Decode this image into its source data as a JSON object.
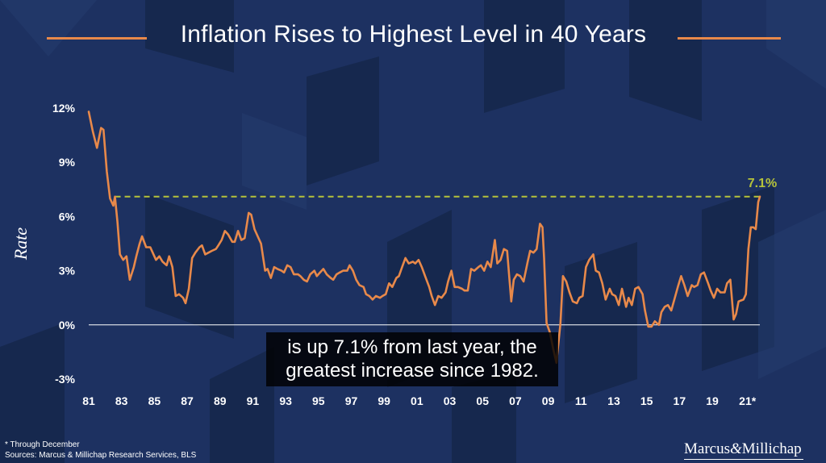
{
  "title": "Inflation Rises to Highest Level in 40 Years",
  "caption_line1": "is up 7.1% from last year, the",
  "caption_line2": "greatest increase since 1982.",
  "footnote_line1": "* Through December",
  "footnote_line2": "Sources: Marcus & Millichap Research Services, BLS",
  "brand_part1": "Marcus",
  "brand_amp": "&",
  "brand_part2": "Millichap",
  "colors": {
    "background": "#1d3161",
    "line": "#e8894a",
    "reference_line": "#b5c23a",
    "text": "#ffffff"
  },
  "chart_data": {
    "type": "line",
    "title": "Inflation Rises to Highest Level in 40 Years",
    "ylabel": "Rate",
    "xlabel": "",
    "ylim": [
      -3,
      12
    ],
    "xlim": [
      1981,
      2021.9
    ],
    "y_ticks": [
      {
        "value": 12,
        "label": "12%"
      },
      {
        "value": 9,
        "label": "9%"
      },
      {
        "value": 6,
        "label": "6%"
      },
      {
        "value": 3,
        "label": "3%"
      },
      {
        "value": 0,
        "label": "0%"
      },
      {
        "value": -3,
        "label": "-3%"
      }
    ],
    "x_ticks": [
      {
        "value": 1981,
        "label": "81"
      },
      {
        "value": 1983,
        "label": "83"
      },
      {
        "value": 1985,
        "label": "85"
      },
      {
        "value": 1987,
        "label": "87"
      },
      {
        "value": 1989,
        "label": "89"
      },
      {
        "value": 1991,
        "label": "91"
      },
      {
        "value": 1993,
        "label": "93"
      },
      {
        "value": 1995,
        "label": "95"
      },
      {
        "value": 1997,
        "label": "97"
      },
      {
        "value": 1999,
        "label": "99"
      },
      {
        "value": 2001,
        "label": "01"
      },
      {
        "value": 2003,
        "label": "03"
      },
      {
        "value": 2005,
        "label": "05"
      },
      {
        "value": 2007,
        "label": "07"
      },
      {
        "value": 2009,
        "label": "09"
      },
      {
        "value": 2011,
        "label": "11"
      },
      {
        "value": 2013,
        "label": "13"
      },
      {
        "value": 2015,
        "label": "15"
      },
      {
        "value": 2017,
        "label": "17"
      },
      {
        "value": 2019,
        "label": "19"
      },
      {
        "value": 2021,
        "label": "21*"
      }
    ],
    "reference_line": {
      "value": 7.1,
      "label": "7.1%",
      "style": "dashed"
    },
    "zero_line": true,
    "grid": false,
    "series": [
      {
        "points": [
          [
            1981.0,
            11.8
          ],
          [
            1981.25,
            10.7
          ],
          [
            1981.5,
            9.8
          ],
          [
            1981.75,
            10.9
          ],
          [
            1981.9,
            10.8
          ],
          [
            1982.1,
            8.5
          ],
          [
            1982.3,
            7.0
          ],
          [
            1982.5,
            6.6
          ],
          [
            1982.6,
            7.1
          ],
          [
            1982.75,
            5.7
          ],
          [
            1982.9,
            3.9
          ],
          [
            1983.1,
            3.6
          ],
          [
            1983.3,
            3.8
          ],
          [
            1983.5,
            2.5
          ],
          [
            1983.75,
            3.2
          ],
          [
            1983.9,
            3.8
          ],
          [
            1984.1,
            4.5
          ],
          [
            1984.25,
            4.9
          ],
          [
            1984.5,
            4.3
          ],
          [
            1984.75,
            4.3
          ],
          [
            1984.9,
            4.0
          ],
          [
            1985.1,
            3.6
          ],
          [
            1985.3,
            3.8
          ],
          [
            1985.5,
            3.5
          ],
          [
            1985.75,
            3.3
          ],
          [
            1985.9,
            3.8
          ],
          [
            1986.1,
            3.2
          ],
          [
            1986.3,
            1.6
          ],
          [
            1986.5,
            1.7
          ],
          [
            1986.75,
            1.5
          ],
          [
            1986.9,
            1.2
          ],
          [
            1987.1,
            2.0
          ],
          [
            1987.3,
            3.7
          ],
          [
            1987.5,
            4.0
          ],
          [
            1987.75,
            4.3
          ],
          [
            1987.9,
            4.4
          ],
          [
            1988.1,
            3.9
          ],
          [
            1988.3,
            4.0
          ],
          [
            1988.5,
            4.1
          ],
          [
            1988.75,
            4.2
          ],
          [
            1988.9,
            4.4
          ],
          [
            1989.1,
            4.7
          ],
          [
            1989.3,
            5.2
          ],
          [
            1989.5,
            5.0
          ],
          [
            1989.75,
            4.6
          ],
          [
            1989.9,
            4.6
          ],
          [
            1990.1,
            5.2
          ],
          [
            1990.3,
            4.7
          ],
          [
            1990.5,
            4.8
          ],
          [
            1990.75,
            6.2
          ],
          [
            1990.9,
            6.1
          ],
          [
            1991.1,
            5.3
          ],
          [
            1991.3,
            4.9
          ],
          [
            1991.5,
            4.5
          ],
          [
            1991.75,
            3.0
          ],
          [
            1991.9,
            3.1
          ],
          [
            1992.1,
            2.6
          ],
          [
            1992.3,
            3.2
          ],
          [
            1992.5,
            3.1
          ],
          [
            1992.75,
            3.0
          ],
          [
            1992.9,
            2.9
          ],
          [
            1993.1,
            3.3
          ],
          [
            1993.3,
            3.2
          ],
          [
            1993.5,
            2.8
          ],
          [
            1993.75,
            2.8
          ],
          [
            1993.9,
            2.7
          ],
          [
            1994.1,
            2.5
          ],
          [
            1994.3,
            2.4
          ],
          [
            1994.5,
            2.8
          ],
          [
            1994.75,
            3.0
          ],
          [
            1994.9,
            2.7
          ],
          [
            1995.1,
            2.9
          ],
          [
            1995.3,
            3.1
          ],
          [
            1995.5,
            2.8
          ],
          [
            1995.75,
            2.6
          ],
          [
            1995.9,
            2.5
          ],
          [
            1996.1,
            2.8
          ],
          [
            1996.3,
            2.9
          ],
          [
            1996.5,
            3.0
          ],
          [
            1996.75,
            3.0
          ],
          [
            1996.9,
            3.3
          ],
          [
            1997.1,
            3.0
          ],
          [
            1997.3,
            2.5
          ],
          [
            1997.5,
            2.2
          ],
          [
            1997.75,
            2.1
          ],
          [
            1997.9,
            1.7
          ],
          [
            1998.1,
            1.6
          ],
          [
            1998.3,
            1.4
          ],
          [
            1998.5,
            1.6
          ],
          [
            1998.75,
            1.5
          ],
          [
            1998.9,
            1.6
          ],
          [
            1999.1,
            1.7
          ],
          [
            1999.3,
            2.3
          ],
          [
            1999.5,
            2.1
          ],
          [
            1999.75,
            2.6
          ],
          [
            1999.9,
            2.7
          ],
          [
            2000.1,
            3.2
          ],
          [
            2000.3,
            3.7
          ],
          [
            2000.5,
            3.4
          ],
          [
            2000.75,
            3.5
          ],
          [
            2000.9,
            3.4
          ],
          [
            2001.1,
            3.6
          ],
          [
            2001.3,
            3.2
          ],
          [
            2001.5,
            2.7
          ],
          [
            2001.75,
            2.1
          ],
          [
            2001.9,
            1.6
          ],
          [
            2002.1,
            1.1
          ],
          [
            2002.3,
            1.6
          ],
          [
            2002.5,
            1.5
          ],
          [
            2002.75,
            1.8
          ],
          [
            2002.9,
            2.4
          ],
          [
            2003.1,
            3.0
          ],
          [
            2003.3,
            2.1
          ],
          [
            2003.5,
            2.1
          ],
          [
            2003.75,
            2.0
          ],
          [
            2003.9,
            1.9
          ],
          [
            2004.1,
            1.9
          ],
          [
            2004.3,
            3.1
          ],
          [
            2004.5,
            3.0
          ],
          [
            2004.75,
            3.2
          ],
          [
            2004.9,
            3.3
          ],
          [
            2005.1,
            3.0
          ],
          [
            2005.3,
            3.5
          ],
          [
            2005.5,
            3.2
          ],
          [
            2005.75,
            4.7
          ],
          [
            2005.9,
            3.4
          ],
          [
            2006.1,
            3.6
          ],
          [
            2006.3,
            4.2
          ],
          [
            2006.5,
            4.1
          ],
          [
            2006.75,
            1.3
          ],
          [
            2006.9,
            2.5
          ],
          [
            2007.1,
            2.8
          ],
          [
            2007.3,
            2.7
          ],
          [
            2007.5,
            2.4
          ],
          [
            2007.75,
            3.5
          ],
          [
            2007.9,
            4.1
          ],
          [
            2008.1,
            4.0
          ],
          [
            2008.3,
            4.2
          ],
          [
            2008.5,
            5.6
          ],
          [
            2008.65,
            5.4
          ],
          [
            2008.75,
            3.7
          ],
          [
            2008.9,
            0.1
          ],
          [
            2009.1,
            -0.4
          ],
          [
            2009.3,
            -1.3
          ],
          [
            2009.5,
            -2.1
          ],
          [
            2009.75,
            0.1
          ],
          [
            2009.9,
            2.7
          ],
          [
            2010.1,
            2.4
          ],
          [
            2010.3,
            1.8
          ],
          [
            2010.5,
            1.3
          ],
          [
            2010.75,
            1.2
          ],
          [
            2010.9,
            1.5
          ],
          [
            2011.1,
            1.6
          ],
          [
            2011.3,
            3.2
          ],
          [
            2011.5,
            3.6
          ],
          [
            2011.75,
            3.9
          ],
          [
            2011.9,
            3.0
          ],
          [
            2012.1,
            2.9
          ],
          [
            2012.3,
            2.3
          ],
          [
            2012.5,
            1.4
          ],
          [
            2012.75,
            2.0
          ],
          [
            2012.9,
            1.7
          ],
          [
            2013.1,
            1.6
          ],
          [
            2013.3,
            1.1
          ],
          [
            2013.5,
            2.0
          ],
          [
            2013.75,
            1.0
          ],
          [
            2013.9,
            1.5
          ],
          [
            2014.1,
            1.1
          ],
          [
            2014.3,
            2.0
          ],
          [
            2014.5,
            2.1
          ],
          [
            2014.75,
            1.7
          ],
          [
            2014.9,
            0.8
          ],
          [
            2015.1,
            -0.1
          ],
          [
            2015.3,
            -0.1
          ],
          [
            2015.5,
            0.2
          ],
          [
            2015.75,
            0.0
          ],
          [
            2015.9,
            0.7
          ],
          [
            2016.1,
            1.0
          ],
          [
            2016.3,
            1.1
          ],
          [
            2016.5,
            0.8
          ],
          [
            2016.75,
            1.6
          ],
          [
            2016.9,
            2.1
          ],
          [
            2017.1,
            2.7
          ],
          [
            2017.3,
            2.2
          ],
          [
            2017.5,
            1.6
          ],
          [
            2017.75,
            2.2
          ],
          [
            2017.9,
            2.1
          ],
          [
            2018.1,
            2.2
          ],
          [
            2018.3,
            2.8
          ],
          [
            2018.5,
            2.9
          ],
          [
            2018.75,
            2.3
          ],
          [
            2018.9,
            1.9
          ],
          [
            2019.1,
            1.5
          ],
          [
            2019.3,
            2.0
          ],
          [
            2019.5,
            1.8
          ],
          [
            2019.75,
            1.8
          ],
          [
            2019.9,
            2.3
          ],
          [
            2020.1,
            2.5
          ],
          [
            2020.3,
            0.3
          ],
          [
            2020.45,
            0.6
          ],
          [
            2020.6,
            1.3
          ],
          [
            2020.9,
            1.4
          ],
          [
            2021.05,
            1.7
          ],
          [
            2021.2,
            4.2
          ],
          [
            2021.35,
            5.4
          ],
          [
            2021.5,
            5.4
          ],
          [
            2021.65,
            5.3
          ],
          [
            2021.8,
            6.8
          ],
          [
            2021.9,
            7.1
          ]
        ]
      }
    ]
  }
}
